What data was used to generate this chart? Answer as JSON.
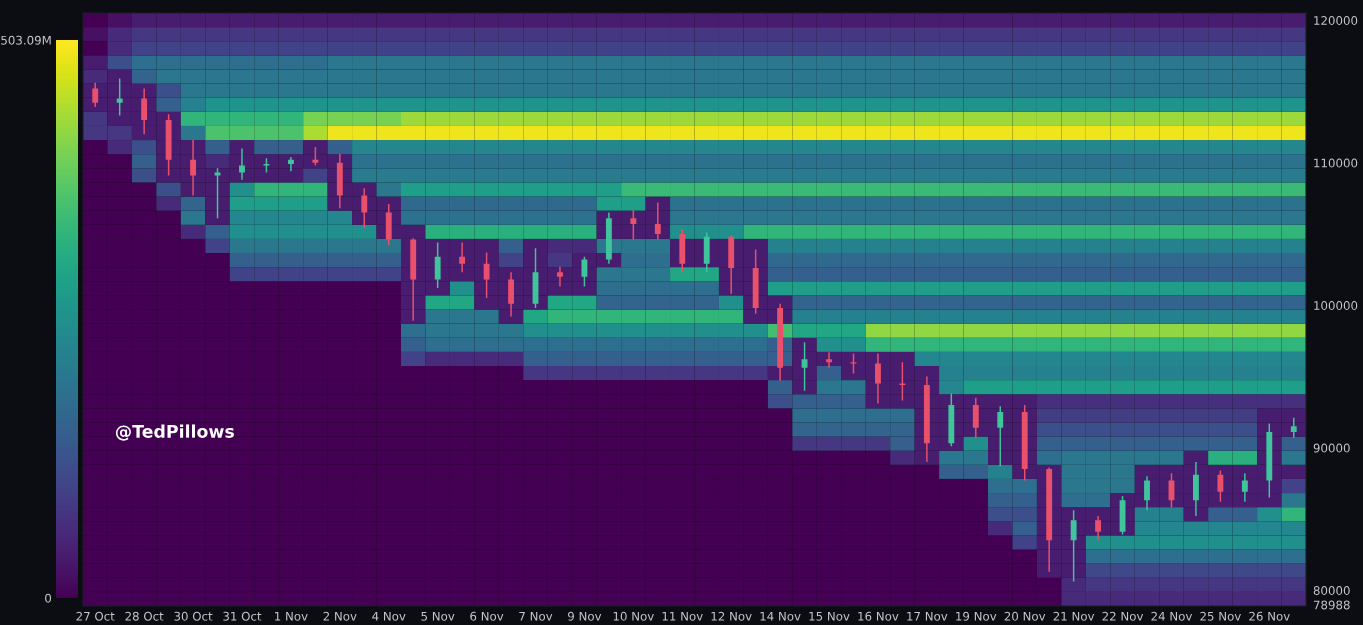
{
  "chart_data": {
    "type": "heatmap",
    "categories": [
      "27 Oct",
      null,
      "28 Oct",
      null,
      "30 Oct",
      null,
      "31 Oct",
      null,
      "1 Nov",
      null,
      "2 Nov",
      null,
      "4 Nov",
      null,
      "5 Nov",
      null,
      "6 Nov",
      null,
      "7 Nov",
      null,
      "9 Nov",
      null,
      "10 Nov",
      null,
      "11 Nov",
      null,
      "12 Nov",
      null,
      "14 Nov",
      null,
      "15 Nov",
      null,
      "16 Nov",
      null,
      "17 Nov",
      null,
      "19 Nov",
      null,
      "20 Nov",
      null,
      "21 Nov",
      null,
      "22 Nov",
      null,
      "24 Nov",
      null,
      "25 Nov",
      null,
      "26 Nov",
      null
    ],
    "ylim": [
      78988,
      120600
    ],
    "yticks": [
      78988,
      80000,
      90000,
      100000,
      110000,
      120000
    ],
    "clim": [
      0,
      503.09
    ],
    "cticks": [
      0,
      {
        "value": 503.09,
        "label": "503.09M"
      }
    ],
    "cells": [
      [
        0,
        20,
        40,
        40,
        40,
        40,
        40,
        40,
        40,
        40,
        40,
        40,
        40,
        40,
        40,
        40,
        40,
        40,
        40,
        40,
        40,
        40,
        40,
        40,
        40,
        40,
        40,
        40,
        40,
        40,
        40,
        40,
        40,
        40,
        40,
        40,
        40,
        40,
        40,
        40,
        40,
        40,
        40,
        40,
        40,
        40,
        40,
        40,
        40,
        40
      ],
      [
        20,
        60,
        80,
        80,
        80,
        80,
        80,
        80,
        80,
        80,
        80,
        80,
        80,
        80,
        80,
        80,
        80,
        80,
        80,
        80,
        80,
        80,
        80,
        80,
        80,
        80,
        80,
        80,
        80,
        80,
        80,
        80,
        80,
        80,
        80,
        80,
        80,
        80,
        80,
        80,
        80,
        80,
        80,
        80,
        80,
        80,
        80,
        80,
        80,
        80
      ],
      [
        0,
        60,
        100,
        100,
        100,
        100,
        100,
        100,
        100,
        100,
        100,
        100,
        100,
        100,
        100,
        100,
        100,
        100,
        100,
        100,
        100,
        100,
        100,
        100,
        100,
        100,
        100,
        100,
        100,
        100,
        100,
        100,
        100,
        100,
        100,
        100,
        100,
        100,
        100,
        100,
        100,
        100,
        100,
        100,
        100,
        100,
        100,
        100,
        100,
        100
      ],
      [
        40,
        120,
        180,
        180,
        180,
        180,
        180,
        180,
        180,
        180,
        200,
        200,
        200,
        200,
        200,
        200,
        200,
        200,
        200,
        200,
        200,
        200,
        200,
        200,
        200,
        200,
        200,
        200,
        200,
        200,
        200,
        200,
        200,
        200,
        200,
        200,
        200,
        200,
        200,
        200,
        200,
        200,
        200,
        200,
        200,
        200,
        200,
        200,
        200,
        200
      ],
      [
        60,
        40,
        160,
        200,
        200,
        200,
        200,
        200,
        200,
        200,
        200,
        200,
        200,
        200,
        200,
        200,
        200,
        200,
        200,
        200,
        200,
        200,
        200,
        200,
        200,
        200,
        200,
        200,
        200,
        200,
        200,
        200,
        200,
        200,
        200,
        200,
        200,
        200,
        200,
        200,
        200,
        200,
        200,
        200,
        200,
        200,
        200,
        200,
        200,
        200
      ],
      [
        40,
        40,
        40,
        120,
        200,
        200,
        200,
        200,
        200,
        200,
        200,
        200,
        200,
        200,
        200,
        200,
        200,
        200,
        200,
        200,
        200,
        200,
        200,
        200,
        200,
        200,
        200,
        200,
        200,
        200,
        200,
        200,
        200,
        200,
        200,
        200,
        200,
        200,
        200,
        200,
        200,
        200,
        200,
        200,
        200,
        200,
        200,
        200,
        200,
        200
      ],
      [
        40,
        40,
        40,
        150,
        220,
        260,
        260,
        260,
        260,
        260,
        260,
        260,
        260,
        260,
        260,
        260,
        260,
        260,
        260,
        260,
        260,
        260,
        260,
        260,
        260,
        260,
        260,
        260,
        260,
        260,
        260,
        260,
        260,
        260,
        260,
        260,
        260,
        260,
        260,
        260,
        260,
        260,
        260,
        260,
        260,
        260,
        260,
        260,
        260,
        260
      ],
      [
        80,
        40,
        40,
        40,
        330,
        330,
        330,
        330,
        330,
        400,
        400,
        400,
        400,
        430,
        430,
        430,
        430,
        430,
        430,
        430,
        430,
        430,
        430,
        430,
        430,
        430,
        430,
        430,
        430,
        430,
        430,
        430,
        430,
        430,
        430,
        430,
        430,
        430,
        430,
        430,
        430,
        430,
        430,
        430,
        430,
        430,
        430,
        430,
        430,
        430
      ],
      [
        80,
        80,
        40,
        40,
        200,
        360,
        360,
        360,
        360,
        440,
        490,
        490,
        490,
        490,
        490,
        490,
        490,
        490,
        490,
        490,
        490,
        490,
        490,
        490,
        490,
        490,
        490,
        490,
        490,
        490,
        490,
        490,
        490,
        490,
        490,
        490,
        490,
        490,
        490,
        490,
        490,
        490,
        490,
        490,
        490,
        490,
        490,
        490,
        490,
        490
      ],
      [
        0,
        60,
        120,
        40,
        40,
        150,
        40,
        150,
        150,
        40,
        150,
        230,
        230,
        230,
        230,
        230,
        230,
        230,
        230,
        230,
        230,
        230,
        230,
        230,
        230,
        230,
        230,
        230,
        230,
        230,
        230,
        230,
        230,
        230,
        230,
        230,
        230,
        230,
        230,
        230,
        230,
        230,
        230,
        230,
        230,
        230,
        230,
        230,
        230,
        230
      ],
      [
        0,
        0,
        150,
        40,
        40,
        60,
        40,
        40,
        40,
        40,
        40,
        190,
        190,
        190,
        190,
        190,
        190,
        190,
        190,
        190,
        190,
        190,
        190,
        190,
        190,
        190,
        190,
        190,
        190,
        190,
        190,
        190,
        190,
        190,
        190,
        190,
        190,
        190,
        190,
        190,
        190,
        190,
        190,
        190,
        190,
        190,
        190,
        190,
        190,
        190
      ],
      [
        0,
        0,
        120,
        40,
        40,
        40,
        40,
        40,
        40,
        100,
        40,
        210,
        210,
        210,
        210,
        210,
        210,
        210,
        210,
        210,
        210,
        210,
        210,
        210,
        210,
        210,
        210,
        210,
        210,
        210,
        210,
        210,
        210,
        210,
        210,
        210,
        210,
        210,
        210,
        210,
        210,
        210,
        210,
        210,
        210,
        210,
        210,
        210,
        210,
        210
      ],
      [
        0,
        0,
        0,
        120,
        40,
        40,
        250,
        330,
        330,
        330,
        40,
        40,
        200,
        280,
        280,
        280,
        280,
        280,
        280,
        280,
        280,
        280,
        340,
        340,
        340,
        340,
        340,
        340,
        340,
        340,
        340,
        340,
        340,
        340,
        340,
        340,
        340,
        340,
        340,
        340,
        340,
        340,
        340,
        340,
        340,
        340,
        340,
        340,
        340,
        340
      ],
      [
        0,
        0,
        0,
        60,
        160,
        40,
        280,
        280,
        280,
        280,
        40,
        40,
        40,
        170,
        170,
        170,
        170,
        170,
        170,
        170,
        170,
        280,
        280,
        40,
        190,
        190,
        190,
        190,
        190,
        190,
        190,
        190,
        190,
        190,
        190,
        190,
        190,
        190,
        190,
        190,
        190,
        190,
        190,
        190,
        190,
        190,
        190,
        190,
        190,
        190
      ],
      [
        0,
        0,
        0,
        0,
        200,
        40,
        230,
        230,
        230,
        230,
        230,
        40,
        40,
        190,
        190,
        190,
        190,
        190,
        190,
        190,
        190,
        40,
        40,
        40,
        200,
        200,
        200,
        200,
        200,
        200,
        200,
        200,
        200,
        200,
        200,
        200,
        200,
        200,
        200,
        200,
        200,
        200,
        200,
        200,
        200,
        200,
        200,
        200,
        200,
        200
      ],
      [
        0,
        0,
        0,
        0,
        60,
        150,
        250,
        250,
        250,
        250,
        250,
        250,
        40,
        40,
        320,
        320,
        320,
        320,
        320,
        320,
        320,
        40,
        40,
        40,
        250,
        250,
        250,
        330,
        330,
        330,
        330,
        330,
        330,
        330,
        330,
        330,
        330,
        330,
        330,
        330,
        330,
        330,
        330,
        330,
        330,
        330,
        330,
        330,
        330,
        330
      ],
      [
        0,
        0,
        0,
        0,
        0,
        100,
        200,
        200,
        200,
        200,
        200,
        200,
        200,
        40,
        40,
        40,
        40,
        150,
        40,
        60,
        60,
        200,
        200,
        200,
        40,
        40,
        40,
        40,
        220,
        220,
        220,
        220,
        220,
        220,
        220,
        220,
        220,
        220,
        220,
        220,
        220,
        220,
        220,
        220,
        220,
        220,
        220,
        220,
        220,
        220
      ],
      [
        0,
        0,
        0,
        0,
        0,
        0,
        150,
        150,
        150,
        150,
        150,
        150,
        150,
        40,
        40,
        40,
        40,
        100,
        40,
        80,
        40,
        40,
        180,
        180,
        40,
        40,
        40,
        40,
        170,
        170,
        170,
        170,
        170,
        170,
        170,
        170,
        170,
        170,
        170,
        170,
        170,
        170,
        170,
        170,
        170,
        170,
        170,
        170,
        170,
        170
      ],
      [
        0,
        0,
        0,
        0,
        0,
        0,
        100,
        100,
        100,
        100,
        100,
        100,
        100,
        40,
        40,
        40,
        40,
        40,
        40,
        40,
        40,
        200,
        200,
        200,
        300,
        300,
        40,
        40,
        150,
        150,
        150,
        150,
        150,
        150,
        150,
        150,
        150,
        150,
        150,
        150,
        150,
        150,
        150,
        150,
        150,
        150,
        150,
        150,
        150,
        150
      ],
      [
        0,
        0,
        0,
        0,
        0,
        0,
        0,
        0,
        0,
        0,
        0,
        0,
        0,
        40,
        40,
        250,
        40,
        40,
        40,
        40,
        40,
        180,
        180,
        180,
        180,
        180,
        40,
        40,
        280,
        280,
        280,
        280,
        280,
        280,
        280,
        280,
        280,
        280,
        280,
        280,
        280,
        280,
        280,
        280,
        280,
        280,
        280,
        280,
        280,
        280
      ],
      [
        0,
        0,
        0,
        0,
        0,
        0,
        0,
        0,
        0,
        0,
        0,
        0,
        0,
        40,
        300,
        300,
        40,
        40,
        40,
        300,
        300,
        160,
        160,
        160,
        160,
        160,
        250,
        40,
        40,
        160,
        160,
        160,
        160,
        160,
        160,
        160,
        160,
        160,
        160,
        160,
        160,
        160,
        160,
        160,
        160,
        160,
        160,
        160,
        160,
        160
      ],
      [
        0,
        0,
        0,
        0,
        0,
        0,
        0,
        0,
        0,
        0,
        0,
        0,
        0,
        40,
        200,
        200,
        200,
        40,
        300,
        330,
        330,
        330,
        330,
        330,
        330,
        330,
        330,
        40,
        40,
        220,
        220,
        220,
        220,
        220,
        220,
        220,
        220,
        220,
        220,
        220,
        220,
        220,
        220,
        220,
        220,
        220,
        220,
        220,
        220,
        220
      ],
      [
        0,
        0,
        0,
        0,
        0,
        0,
        0,
        0,
        0,
        0,
        0,
        0,
        0,
        180,
        200,
        200,
        200,
        200,
        250,
        250,
        250,
        250,
        250,
        250,
        250,
        250,
        250,
        250,
        350,
        300,
        300,
        300,
        420,
        420,
        420,
        420,
        420,
        420,
        420,
        420,
        420,
        420,
        420,
        420,
        420,
        420,
        420,
        420,
        420,
        420
      ],
      [
        0,
        0,
        0,
        0,
        0,
        0,
        0,
        0,
        0,
        0,
        0,
        0,
        0,
        150,
        180,
        180,
        180,
        180,
        180,
        180,
        180,
        180,
        180,
        180,
        180,
        180,
        180,
        180,
        150,
        40,
        250,
        250,
        330,
        330,
        330,
        330,
        330,
        330,
        330,
        330,
        330,
        330,
        330,
        330,
        330,
        330,
        330,
        330,
        330,
        330
      ],
      [
        0,
        0,
        0,
        0,
        0,
        0,
        0,
        0,
        0,
        0,
        0,
        0,
        0,
        100,
        60,
        60,
        60,
        60,
        150,
        150,
        150,
        150,
        150,
        150,
        150,
        150,
        150,
        150,
        150,
        40,
        40,
        40,
        40,
        40,
        230,
        230,
        230,
        230,
        230,
        230,
        230,
        230,
        230,
        230,
        230,
        230,
        230,
        230,
        230,
        230
      ],
      [
        0,
        0,
        0,
        0,
        0,
        0,
        0,
        0,
        0,
        0,
        0,
        0,
        0,
        0,
        0,
        0,
        0,
        0,
        80,
        80,
        80,
        80,
        80,
        80,
        80,
        80,
        80,
        80,
        40,
        40,
        150,
        40,
        40,
        40,
        40,
        220,
        220,
        220,
        220,
        220,
        220,
        220,
        220,
        220,
        220,
        220,
        220,
        220,
        220,
        220
      ],
      [
        0,
        0,
        0,
        0,
        0,
        0,
        0,
        0,
        0,
        0,
        0,
        0,
        0,
        0,
        0,
        0,
        0,
        0,
        0,
        0,
        0,
        0,
        0,
        0,
        0,
        0,
        0,
        0,
        150,
        40,
        200,
        200,
        40,
        40,
        40,
        230,
        280,
        280,
        280,
        280,
        280,
        280,
        280,
        280,
        280,
        280,
        280,
        280,
        280,
        280
      ],
      [
        0,
        0,
        0,
        0,
        0,
        0,
        0,
        0,
        0,
        0,
        0,
        0,
        0,
        0,
        0,
        0,
        0,
        0,
        0,
        0,
        0,
        0,
        0,
        0,
        0,
        0,
        0,
        0,
        120,
        150,
        150,
        150,
        40,
        40,
        40,
        40,
        40,
        40,
        40,
        70,
        70,
        70,
        70,
        70,
        70,
        70,
        70,
        70,
        70,
        70
      ],
      [
        0,
        0,
        0,
        0,
        0,
        0,
        0,
        0,
        0,
        0,
        0,
        0,
        0,
        0,
        0,
        0,
        0,
        0,
        0,
        0,
        0,
        0,
        0,
        0,
        0,
        0,
        0,
        0,
        0,
        180,
        180,
        180,
        180,
        180,
        40,
        40,
        40,
        40,
        40,
        90,
        90,
        90,
        90,
        90,
        90,
        90,
        90,
        90,
        40,
        40
      ],
      [
        0,
        0,
        0,
        0,
        0,
        0,
        0,
        0,
        0,
        0,
        0,
        0,
        0,
        0,
        0,
        0,
        0,
        0,
        0,
        0,
        0,
        0,
        0,
        0,
        0,
        0,
        0,
        0,
        0,
        160,
        160,
        160,
        160,
        160,
        40,
        40,
        40,
        40,
        40,
        120,
        120,
        120,
        120,
        120,
        120,
        120,
        120,
        120,
        40,
        40
      ],
      [
        0,
        0,
        0,
        0,
        0,
        0,
        0,
        0,
        0,
        0,
        0,
        0,
        0,
        0,
        0,
        0,
        0,
        0,
        0,
        0,
        0,
        0,
        0,
        0,
        0,
        0,
        0,
        0,
        0,
        80,
        80,
        80,
        80,
        150,
        40,
        40,
        250,
        40,
        40,
        150,
        150,
        150,
        150,
        150,
        150,
        150,
        150,
        150,
        40,
        150
      ],
      [
        0,
        0,
        0,
        0,
        0,
        0,
        0,
        0,
        0,
        0,
        0,
        0,
        0,
        0,
        0,
        0,
        0,
        0,
        0,
        0,
        0,
        0,
        0,
        0,
        0,
        0,
        0,
        0,
        0,
        0,
        0,
        0,
        0,
        60,
        40,
        200,
        200,
        40,
        40,
        180,
        200,
        200,
        200,
        200,
        200,
        40,
        320,
        320,
        40,
        200
      ],
      [
        0,
        0,
        0,
        0,
        0,
        0,
        0,
        0,
        0,
        0,
        0,
        0,
        0,
        0,
        0,
        0,
        0,
        0,
        0,
        0,
        0,
        0,
        0,
        0,
        0,
        0,
        0,
        0,
        0,
        0,
        0,
        0,
        0,
        0,
        0,
        150,
        150,
        220,
        40,
        40,
        200,
        200,
        200,
        40,
        40,
        40,
        40,
        40,
        40,
        40
      ],
      [
        0,
        0,
        0,
        0,
        0,
        0,
        0,
        0,
        0,
        0,
        0,
        0,
        0,
        0,
        0,
        0,
        0,
        0,
        0,
        0,
        0,
        0,
        0,
        0,
        0,
        0,
        0,
        0,
        0,
        0,
        0,
        0,
        0,
        0,
        0,
        0,
        0,
        180,
        180,
        40,
        200,
        200,
        200,
        40,
        40,
        40,
        40,
        40,
        40,
        100
      ],
      [
        0,
        0,
        0,
        0,
        0,
        0,
        0,
        0,
        0,
        0,
        0,
        0,
        0,
        0,
        0,
        0,
        0,
        0,
        0,
        0,
        0,
        0,
        0,
        0,
        0,
        0,
        0,
        0,
        0,
        0,
        0,
        0,
        0,
        0,
        0,
        0,
        0,
        150,
        150,
        40,
        180,
        180,
        40,
        40,
        40,
        40,
        40,
        40,
        40,
        200
      ],
      [
        0,
        0,
        0,
        0,
        0,
        0,
        0,
        0,
        0,
        0,
        0,
        0,
        0,
        0,
        0,
        0,
        0,
        0,
        0,
        0,
        0,
        0,
        0,
        0,
        0,
        0,
        0,
        0,
        0,
        0,
        0,
        0,
        0,
        0,
        0,
        0,
        0,
        120,
        120,
        40,
        40,
        40,
        40,
        220,
        220,
        40,
        150,
        150,
        250,
        330
      ],
      [
        0,
        0,
        0,
        0,
        0,
        0,
        0,
        0,
        0,
        0,
        0,
        0,
        0,
        0,
        0,
        0,
        0,
        0,
        0,
        0,
        0,
        0,
        0,
        0,
        0,
        0,
        0,
        0,
        0,
        0,
        0,
        0,
        0,
        0,
        0,
        0,
        0,
        60,
        150,
        40,
        40,
        40,
        40,
        230,
        230,
        230,
        230,
        230,
        230,
        230
      ],
      [
        0,
        0,
        0,
        0,
        0,
        0,
        0,
        0,
        0,
        0,
        0,
        0,
        0,
        0,
        0,
        0,
        0,
        0,
        0,
        0,
        0,
        0,
        0,
        0,
        0,
        0,
        0,
        0,
        0,
        0,
        0,
        0,
        0,
        0,
        0,
        0,
        0,
        0,
        100,
        40,
        40,
        250,
        250,
        250,
        250,
        250,
        250,
        250,
        250,
        250
      ],
      [
        0,
        0,
        0,
        0,
        0,
        0,
        0,
        0,
        0,
        0,
        0,
        0,
        0,
        0,
        0,
        0,
        0,
        0,
        0,
        0,
        0,
        0,
        0,
        0,
        0,
        0,
        0,
        0,
        0,
        0,
        0,
        0,
        0,
        0,
        0,
        0,
        0,
        0,
        0,
        40,
        40,
        180,
        180,
        180,
        180,
        180,
        180,
        180,
        180,
        180
      ],
      [
        0,
        0,
        0,
        0,
        0,
        0,
        0,
        0,
        0,
        0,
        0,
        0,
        0,
        0,
        0,
        0,
        0,
        0,
        0,
        0,
        0,
        0,
        0,
        0,
        0,
        0,
        0,
        0,
        0,
        0,
        0,
        0,
        0,
        0,
        0,
        0,
        0,
        0,
        0,
        40,
        40,
        110,
        110,
        110,
        110,
        110,
        110,
        110,
        110,
        110
      ],
      [
        0,
        0,
        0,
        0,
        0,
        0,
        0,
        0,
        0,
        0,
        0,
        0,
        0,
        0,
        0,
        0,
        0,
        0,
        0,
        0,
        0,
        0,
        0,
        0,
        0,
        0,
        0,
        0,
        0,
        0,
        0,
        0,
        0,
        0,
        0,
        0,
        0,
        0,
        0,
        0,
        60,
        80,
        80,
        80,
        80,
        80,
        80,
        80,
        80,
        80
      ],
      [
        0,
        0,
        0,
        0,
        0,
        0,
        0,
        0,
        0,
        0,
        0,
        0,
        0,
        0,
        0,
        0,
        0,
        0,
        0,
        0,
        0,
        0,
        0,
        0,
        0,
        0,
        0,
        0,
        0,
        0,
        0,
        0,
        0,
        0,
        0,
        0,
        0,
        0,
        0,
        0,
        60,
        60,
        60,
        60,
        60,
        60,
        60,
        60,
        60,
        60
      ]
    ],
    "series": [
      {
        "type": "candlestick",
        "ohlc": [
          [
            115300,
            115700,
            114000,
            114300
          ],
          [
            114300,
            116000,
            113400,
            114600
          ],
          [
            114600,
            115300,
            112100,
            113100
          ],
          [
            113100,
            113500,
            109200,
            110300
          ],
          [
            110300,
            111700,
            107800,
            109200
          ],
          [
            109200,
            109700,
            106200,
            109400
          ],
          [
            109400,
            111100,
            108900,
            109900
          ],
          [
            109900,
            110400,
            109400,
            110000
          ],
          [
            110000,
            110500,
            109500,
            110300
          ],
          [
            110300,
            111200,
            109900,
            110100
          ],
          [
            110100,
            110700,
            106900,
            107800
          ],
          [
            107800,
            108300,
            105500,
            106600
          ],
          [
            106600,
            107200,
            104300,
            104700
          ],
          [
            104700,
            104800,
            99000,
            101900
          ],
          [
            101900,
            104500,
            101300,
            103500
          ],
          [
            103500,
            104500,
            102400,
            103000
          ],
          [
            103000,
            103800,
            100600,
            101900
          ],
          [
            101900,
            102400,
            99300,
            100200
          ],
          [
            100200,
            104100,
            99900,
            102400
          ],
          [
            102400,
            102800,
            101400,
            102100
          ],
          [
            102100,
            103500,
            101400,
            103300
          ],
          [
            103300,
            106600,
            103000,
            106200
          ],
          [
            106200,
            106800,
            104700,
            105800
          ],
          [
            105800,
            107300,
            104700,
            105100
          ],
          [
            105100,
            105400,
            102400,
            103000
          ],
          [
            103000,
            105200,
            102400,
            104900
          ],
          [
            104900,
            105000,
            100900,
            102700
          ],
          [
            102700,
            104000,
            99500,
            99900
          ],
          [
            99900,
            100200,
            94800,
            95700
          ],
          [
            95700,
            97500,
            94100,
            96300
          ],
          [
            96300,
            96800,
            95700,
            96100
          ],
          [
            96100,
            96700,
            95300,
            96000
          ],
          [
            96000,
            96700,
            93200,
            94600
          ],
          [
            94600,
            96100,
            93400,
            94500
          ],
          [
            94500,
            95100,
            89100,
            90400
          ],
          [
            90400,
            93900,
            90200,
            93100
          ],
          [
            93100,
            93600,
            90800,
            91500
          ],
          [
            91500,
            93000,
            88800,
            92600
          ],
          [
            92600,
            93100,
            87800,
            88600
          ],
          [
            88600,
            88700,
            81400,
            83600
          ],
          [
            83600,
            85700,
            80700,
            85000
          ],
          [
            85000,
            85300,
            83600,
            84200
          ],
          [
            84200,
            86700,
            84000,
            86400
          ],
          [
            86400,
            88100,
            85700,
            87800
          ],
          [
            87800,
            88300,
            85900,
            86400
          ],
          [
            86400,
            89100,
            85300,
            88200
          ],
          [
            88200,
            88500,
            86300,
            87000
          ],
          [
            87000,
            88300,
            86300,
            87800
          ],
          [
            87800,
            91800,
            86600,
            91200
          ],
          [
            91200,
            92200,
            90800,
            91600
          ]
        ],
        "colors": [
          "#e9506b",
          "#3fc49b",
          "#e9506b",
          "#e9506b",
          "#e9506b",
          "#3fc49b",
          "#3fc49b",
          "#3fc49b",
          "#3fc49b",
          "#e9506b",
          "#e9506b",
          "#e9506b",
          "#e9506b",
          "#e9506b",
          "#3fc49b",
          "#e9506b",
          "#e9506b",
          "#e9506b",
          "#3fc49b",
          "#e9506b",
          "#3fc49b",
          "#3fc49b",
          "#e9506b",
          "#e9506b",
          "#e9506b",
          "#3fc49b",
          "#e9506b",
          "#e9506b",
          "#e9506b",
          "#3fc49b",
          "#e9506b",
          "#e9506b",
          "#e9506b",
          "#e9506b",
          "#e9506b",
          "#3fc49b",
          "#e9506b",
          "#3fc49b",
          "#e9506b",
          "#e9506b",
          "#3fc49b",
          "#e9506b",
          "#3fc49b",
          "#3fc49b",
          "#e9506b",
          "#3fc49b",
          "#e9506b",
          "#3fc49b",
          "#3fc49b",
          "#3fc49b"
        ]
      }
    ],
    "annotations": [
      "@TedPillows"
    ]
  }
}
